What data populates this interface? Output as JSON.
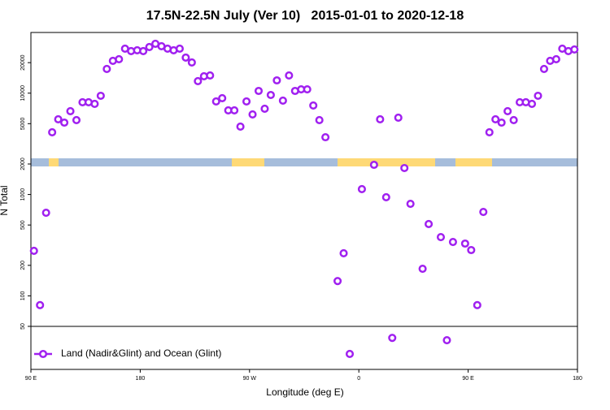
{
  "chart_data": {
    "type": "scatter",
    "title": "17.5N-22.5N July (Ver 10)   2015-01-01 to 2020-12-18",
    "x_label": "Longitude (deg E)",
    "y_label": "N Total",
    "log_y": true,
    "legend": "bottom-left",
    "xlim": [
      90,
      540
    ],
    "xticks": [
      {
        "value": 90,
        "label": "90 E"
      },
      180,
      {
        "value": 270,
        "label": "90 W"
      },
      {
        "value": 360,
        "label": "0"
      },
      {
        "value": 450,
        "label": "90 E"
      },
      180
    ],
    "ylim": [
      18.8,
      39700
    ],
    "yticks": [
      50,
      100,
      200,
      500,
      1000,
      2000,
      5000,
      10000,
      20000
    ],
    "series": [
      {
        "name": "Land (Nadir&Glint) and Ocean (Glint)",
        "color": "#a020f0",
        "x": [
          92.5,
          97.5,
          102.5,
          107.5,
          112.5,
          117.5,
          122.5,
          127.5,
          132.5,
          137.5,
          142.5,
          147.5,
          152.5,
          157.5,
          162.5,
          167.5,
          172.5,
          177.5,
          182.5,
          187.5,
          192.5,
          197.5,
          202.5,
          207.5,
          212.5,
          217.5,
          222.5,
          227.5,
          232.5,
          237.5,
          242.5,
          247.5,
          252.5,
          257.5,
          262.5,
          267.5,
          272.5,
          277.5,
          282.5,
          287.5,
          292.5,
          297.5,
          302.5,
          307.5,
          312.5,
          317.5,
          322.5,
          327.5,
          332.5,
          342.5,
          347.5,
          352.5,
          362.5,
          372.5,
          377.5,
          382.5,
          387.5,
          392.5,
          397.5,
          402.5,
          412.5,
          417.5,
          427.5,
          432.5,
          437.5,
          447.5,
          452.5,
          457.5,
          462.5,
          467.5,
          472.5,
          477.5,
          482.5,
          487.5,
          492.5,
          497.5,
          502.5,
          507.5,
          512.5,
          517.5,
          522.5,
          527.5,
          532.5,
          537.5
        ],
        "values": [
          278,
          81,
          661,
          4108,
          5520,
          5124,
          6637,
          5417,
          8128,
          8128,
          7834,
          9419,
          17320,
          20840,
          21620,
          27480,
          26000,
          26480,
          26000,
          28510,
          30690,
          29040,
          27480,
          26480,
          27480,
          22430,
          20090,
          13140,
          14670,
          14940,
          8280,
          8913,
          6760,
          6760,
          4674,
          8280,
          6166,
          10520,
          7016,
          9594,
          13370,
          8433,
          14940,
          10520,
          10910,
          10910,
          7551,
          5417,
          3675,
          140,
          263,
          26.7,
          1130,
          1963,
          5520,
          939,
          38.5,
          5726,
          1824,
          809,
          185,
          511,
          380,
          36.5,
          340,
          328,
          283,
          81,
          673,
          4108,
          5520,
          5124,
          6637,
          5417,
          8128,
          8128,
          7834,
          9419,
          17320,
          20840,
          21620,
          27480,
          26000,
          26980
        ]
      }
    ]
  }
}
